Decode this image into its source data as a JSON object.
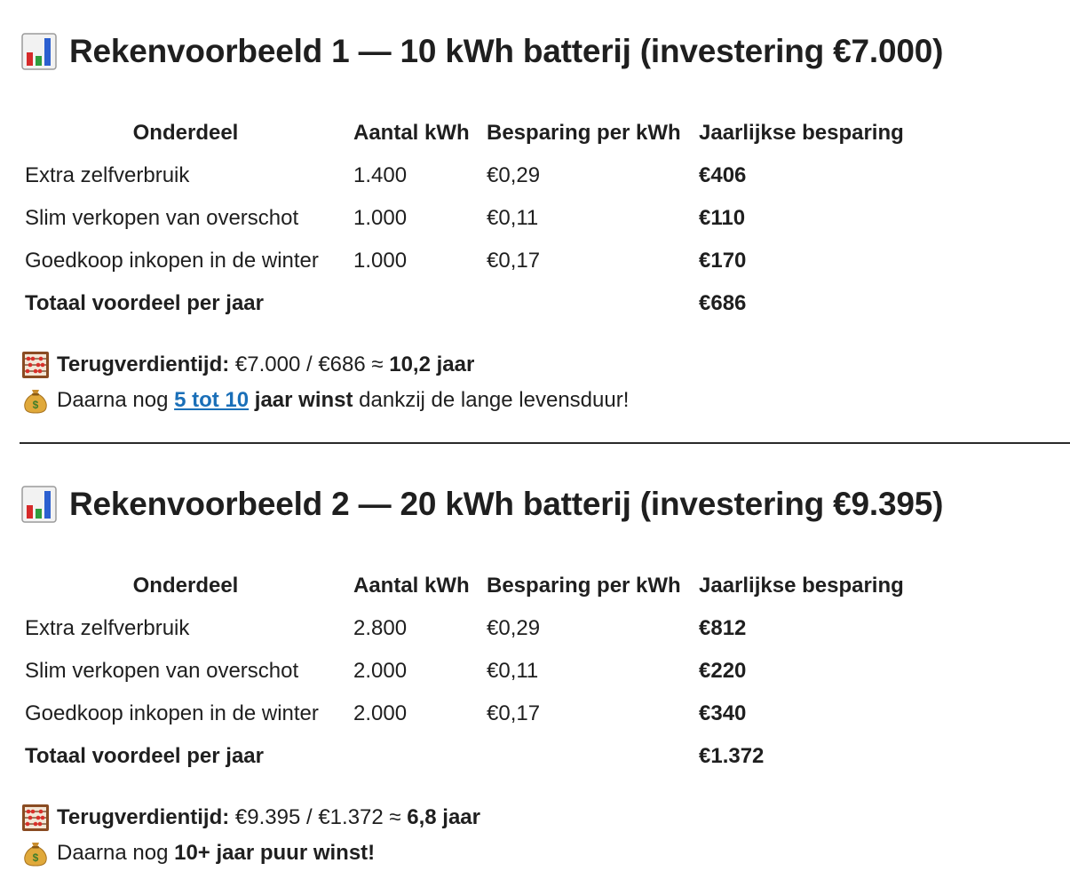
{
  "example1": {
    "heading": "Rekenvoorbeeld 1 — 10 kWh batterij (investering €7.000)",
    "icon": "bar-chart-icon",
    "columns": [
      "Onderdeel",
      "Aantal kWh",
      "Besparing per kWh",
      "Jaarlijkse besparing"
    ],
    "rows": [
      {
        "part": "Extra zelfverbruik",
        "kwh": "1.400",
        "per_kwh": "€0,29",
        "yearly": "€406"
      },
      {
        "part": "Slim verkopen van overschot",
        "kwh": "1.000",
        "per_kwh": "€0,11",
        "yearly": "€110"
      },
      {
        "part": "Goedkoop inkopen in de winter",
        "kwh": "1.000",
        "per_kwh": "€0,17",
        "yearly": "€170"
      }
    ],
    "total": {
      "label": "Totaal voordeel per jaar",
      "value": "€686"
    },
    "payback": {
      "icon": "abacus-icon",
      "label": "Terugverdientijd:",
      "calc": " €7.000 / €686 ≈ ",
      "result": "10,2 jaar"
    },
    "profit": {
      "icon": "money-bag-icon",
      "prefix": "Daarna nog ",
      "link": "5 tot 10",
      "bold": " jaar winst",
      "suffix": " dankzij de lange levensduur!"
    }
  },
  "example2": {
    "heading": "Rekenvoorbeeld 2 — 20 kWh batterij (investering €9.395)",
    "icon": "bar-chart-icon",
    "columns": [
      "Onderdeel",
      "Aantal kWh",
      "Besparing per kWh",
      "Jaarlijkse besparing"
    ],
    "rows": [
      {
        "part": "Extra zelfverbruik",
        "kwh": "2.800",
        "per_kwh": "€0,29",
        "yearly": "€812"
      },
      {
        "part": "Slim verkopen van overschot",
        "kwh": "2.000",
        "per_kwh": "€0,11",
        "yearly": "€220"
      },
      {
        "part": "Goedkoop inkopen in de winter",
        "kwh": "2.000",
        "per_kwh": "€0,17",
        "yearly": "€340"
      }
    ],
    "total": {
      "label": "Totaal voordeel per jaar",
      "value": "€1.372"
    },
    "payback": {
      "icon": "abacus-icon",
      "label": "Terugverdientijd:",
      "calc": " €9.395 / €1.372 ≈ ",
      "result": "6,8 jaar"
    },
    "profit": {
      "icon": "money-bag-icon",
      "prefix": "Daarna nog ",
      "bold": "10+ jaar puur winst!"
    }
  },
  "colors": {
    "link": "#1a6fb8",
    "text": "#1f1f1f",
    "divider": "#2a2a2a"
  }
}
